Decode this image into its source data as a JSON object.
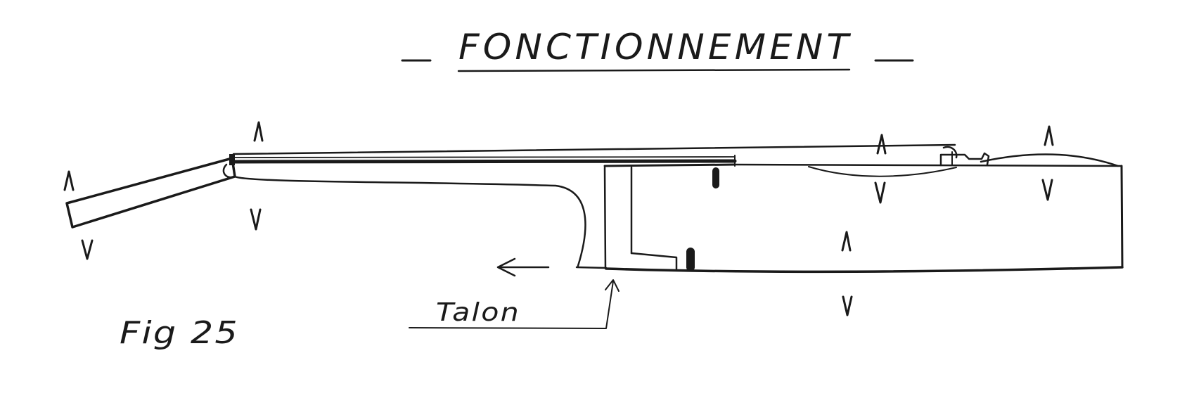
{
  "title": "FONCTIONNEMENT",
  "labels": {
    "talon": "Talon",
    "figure": "Fig 25"
  },
  "colors": {
    "ink": "#1a1a1a",
    "paper": "#ffffff"
  }
}
